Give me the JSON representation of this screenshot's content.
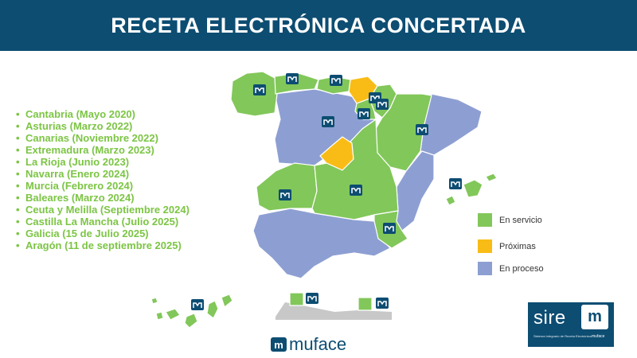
{
  "header": {
    "title": "RECETA ELECTRÓNICA CONCERTADA"
  },
  "regions_list": [
    "Cantabria (Mayo 2020)",
    "Asturias (Marzo 2022)",
    "Canarias (Noviembre 2022)",
    "Extremadura (Marzo 2023)",
    "La Rioja (Junio 2023)",
    "Navarra (Enero 2024)",
    "Murcia (Febrero 2024)",
    "Baleares (Marzo 2024)",
    "Ceuta y Melilla (Septiembre 2024)",
    "Castilla La Mancha (Julio 2025)",
    "Galicia (15 de Julio 2025)",
    "Aragón (11 de septiembre 2025)"
  ],
  "legend": [
    {
      "label": "En servicio",
      "color": "#82c75a"
    },
    {
      "label": "Próximas",
      "color": "#f9bc16"
    },
    {
      "label": "En proceso",
      "color": "#8d9fd2"
    }
  ],
  "map_status": {
    "in_service": [
      "Galicia",
      "Asturias",
      "Cantabria",
      "Navarra",
      "La Rioja",
      "Aragón",
      "Extremadura",
      "Castilla La Mancha",
      "Murcia",
      "Baleares",
      "Canarias",
      "Ceuta",
      "Melilla"
    ],
    "upcoming": [
      "País Vasco",
      "Madrid"
    ],
    "in_process": [
      "Castilla y León",
      "Cataluña",
      "Comunidad Valenciana",
      "Andalucía"
    ]
  },
  "logos": {
    "muface_mark": "m",
    "muface_text": "muface",
    "sire_text": "sire",
    "sire_mark": "m",
    "sire_sub": "Sistema Integrado de Receta Electrónica",
    "sire_muface": "muface"
  },
  "icons": {
    "region_marker": "muface-logo-icon"
  }
}
